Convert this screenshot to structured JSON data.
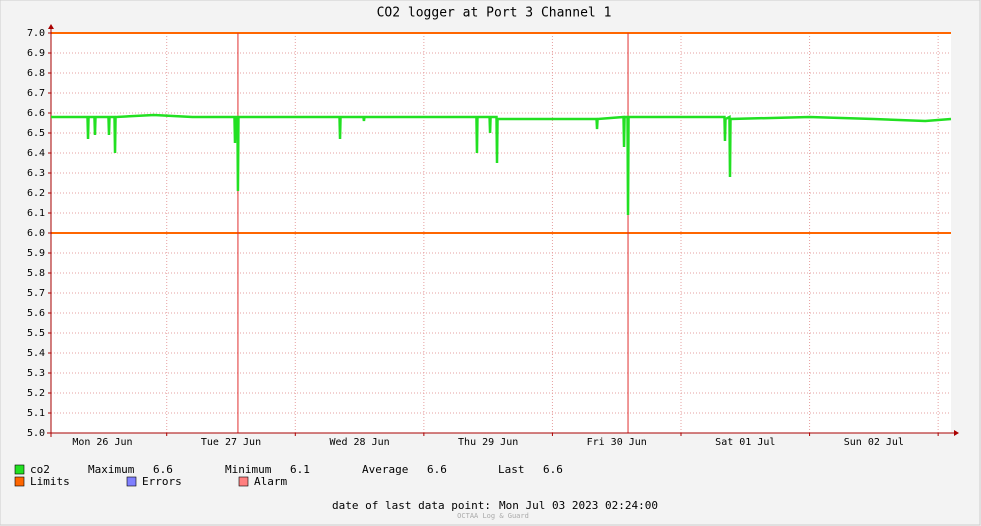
{
  "chart_data": {
    "type": "line",
    "title": "CO2 logger at Port 3 Channel 1",
    "x": [
      0.1,
      0.2,
      0.384,
      0.388,
      0.392,
      0.438,
      0.442,
      0.446,
      0.547,
      0.551,
      0.555,
      0.594,
      0.598,
      0.602,
      0.9,
      1.2,
      1.527,
      1.531,
      1.535,
      1.55,
      1.554,
      1.558,
      1.9,
      2.344,
      2.348,
      2.352,
      2.53,
      2.534,
      2.538,
      3.0,
      3.409,
      3.413,
      3.417,
      3.511,
      3.515,
      3.519,
      3.565,
      3.569,
      3.573,
      4.0,
      4.343,
      4.347,
      4.351,
      4.553,
      4.557,
      4.561,
      4.584,
      4.588,
      4.592,
      5.0,
      5.338,
      5.342,
      5.346,
      5.377,
      5.381,
      5.385,
      6.0,
      6.5,
      6.9,
      7.1
    ],
    "series": [
      {
        "name": "co2",
        "color": "#22e022",
        "values": [
          6.58,
          6.58,
          6.58,
          6.47,
          6.58,
          6.58,
          6.49,
          6.58,
          6.58,
          6.49,
          6.58,
          6.58,
          6.4,
          6.58,
          6.59,
          6.58,
          6.58,
          6.45,
          6.58,
          6.58,
          6.21,
          6.58,
          6.58,
          6.58,
          6.47,
          6.58,
          6.58,
          6.56,
          6.58,
          6.58,
          6.58,
          6.4,
          6.58,
          6.58,
          6.5,
          6.58,
          6.58,
          6.35,
          6.57,
          6.57,
          6.57,
          6.52,
          6.57,
          6.58,
          6.43,
          6.58,
          6.58,
          6.09,
          6.58,
          6.58,
          6.58,
          6.46,
          6.57,
          6.58,
          6.28,
          6.57,
          6.58,
          6.57,
          6.56,
          6.57
        ]
      }
    ],
    "stats": [
      {
        "label": "Maximum",
        "value": 6.6
      },
      {
        "label": "Minimum",
        "value": 6.1
      },
      {
        "label": "Average",
        "value": 6.6
      },
      {
        "label": "Last",
        "value": 6.6
      }
    ],
    "limits": [
      6.0,
      7.0
    ],
    "limits_name": "Limits",
    "limits_color": "#ff6600",
    "errors_name": "Errors",
    "errors_color": "#7f7fff",
    "alarms": [
      1.554,
      4.588
    ],
    "alarms_name": "Alarm",
    "alarms_color": "#ff7f7f",
    "xlim": [
      0.1,
      7.1
    ],
    "xticks": [
      {
        "value": 0.5,
        "label": "Mon 26 Jun"
      },
      {
        "value": 1.5,
        "label": "Tue 27 Jun"
      },
      {
        "value": 2.5,
        "label": "Wed 28 Jun"
      },
      {
        "value": 3.5,
        "label": "Thu 29 Jun"
      },
      {
        "value": 4.5,
        "label": "Fri 30 Jun"
      },
      {
        "value": 5.5,
        "label": "Sat 01 Jul"
      },
      {
        "value": 6.5,
        "label": "Sun 02 Jul"
      }
    ],
    "xgrid": [
      1,
      2,
      3,
      4,
      5,
      6,
      7
    ],
    "ylim": [
      5.0,
      7.0
    ],
    "yticks": [
      {
        "value": 5.0,
        "label": "5.0"
      },
      5.1,
      5.2,
      5.3,
      5.4,
      5.5,
      5.6,
      5.7,
      5.8,
      5.9,
      {
        "value": 6.0,
        "label": "6.0"
      },
      6.1,
      6.2,
      6.3,
      6.4,
      6.5,
      6.6,
      6.7,
      6.8,
      6.9,
      {
        "value": 7.0,
        "label": "7.0"
      }
    ],
    "grid": true,
    "footer_label": "date of last data point:",
    "footer_date": "Mon Jul 03 2023 02:24:00",
    "watermark": "OCTAA Log & Guard"
  }
}
